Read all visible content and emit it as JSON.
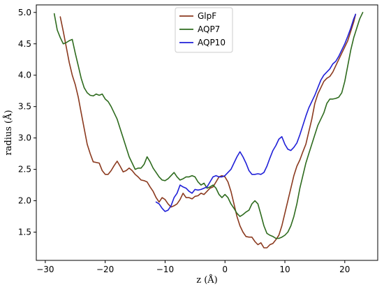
{
  "chart_data": {
    "type": "line",
    "title": "",
    "xlabel": "z (Å)",
    "ylabel": "radius (Å)",
    "xlim": [
      -31.5,
      25.5
    ],
    "ylim": [
      1.05,
      5.12
    ],
    "x_ticks": [
      -30,
      -20,
      -10,
      0,
      10,
      20
    ],
    "y_ticks": [
      1.5,
      2.0,
      2.5,
      3.0,
      3.5,
      4.0,
      4.5,
      5.0
    ],
    "x_tick_labels": [
      "−30",
      "−20",
      "−10",
      "0",
      "10",
      "20"
    ],
    "y_tick_labels": [
      "1.5",
      "2.0",
      "2.5",
      "3.0",
      "3.5",
      "4.0",
      "4.5",
      "5.0"
    ],
    "grid": false,
    "legend_position": "top-center",
    "series": [
      {
        "name": "GlpF",
        "color": "#8b3a1f",
        "points": [
          [
            -27.5,
            4.93
          ],
          [
            -27.0,
            4.7
          ],
          [
            -26.5,
            4.45
          ],
          [
            -26.0,
            4.2
          ],
          [
            -25.5,
            4.0
          ],
          [
            -25.0,
            3.85
          ],
          [
            -24.5,
            3.65
          ],
          [
            -24.0,
            3.4
          ],
          [
            -23.5,
            3.15
          ],
          [
            -23.0,
            2.9
          ],
          [
            -22.5,
            2.75
          ],
          [
            -22.0,
            2.62
          ],
          [
            -21.0,
            2.6
          ],
          [
            -20.5,
            2.48
          ],
          [
            -20.0,
            2.42
          ],
          [
            -19.5,
            2.42
          ],
          [
            -19.0,
            2.48
          ],
          [
            -18.5,
            2.56
          ],
          [
            -18.0,
            2.63
          ],
          [
            -17.5,
            2.55
          ],
          [
            -17.0,
            2.46
          ],
          [
            -16.5,
            2.48
          ],
          [
            -16.0,
            2.52
          ],
          [
            -15.5,
            2.48
          ],
          [
            -15.0,
            2.42
          ],
          [
            -14.5,
            2.38
          ],
          [
            -14.0,
            2.33
          ],
          [
            -13.5,
            2.32
          ],
          [
            -13.0,
            2.3
          ],
          [
            -12.5,
            2.22
          ],
          [
            -12.0,
            2.15
          ],
          [
            -11.5,
            2.05
          ],
          [
            -11.0,
            1.98
          ],
          [
            -10.5,
            2.05
          ],
          [
            -10.0,
            2.02
          ],
          [
            -9.5,
            1.95
          ],
          [
            -9.0,
            1.9
          ],
          [
            -8.5,
            1.92
          ],
          [
            -8.0,
            1.95
          ],
          [
            -7.5,
            2.02
          ],
          [
            -7.0,
            2.12
          ],
          [
            -6.5,
            2.05
          ],
          [
            -6.0,
            2.05
          ],
          [
            -5.5,
            2.03
          ],
          [
            -5.0,
            2.07
          ],
          [
            -4.5,
            2.08
          ],
          [
            -4.0,
            2.12
          ],
          [
            -3.5,
            2.1
          ],
          [
            -3.0,
            2.15
          ],
          [
            -2.5,
            2.2
          ],
          [
            -2.0,
            2.22
          ],
          [
            -1.5,
            2.3
          ],
          [
            -1.0,
            2.38
          ],
          [
            -0.5,
            2.4
          ],
          [
            0.0,
            2.38
          ],
          [
            0.5,
            2.3
          ],
          [
            1.0,
            2.15
          ],
          [
            1.5,
            1.95
          ],
          [
            2.0,
            1.75
          ],
          [
            2.5,
            1.6
          ],
          [
            3.0,
            1.5
          ],
          [
            3.5,
            1.43
          ],
          [
            4.0,
            1.42
          ],
          [
            4.5,
            1.42
          ],
          [
            5.0,
            1.35
          ],
          [
            5.5,
            1.3
          ],
          [
            6.0,
            1.33
          ],
          [
            6.5,
            1.25
          ],
          [
            7.0,
            1.25
          ],
          [
            7.5,
            1.3
          ],
          [
            8.0,
            1.32
          ],
          [
            8.5,
            1.38
          ],
          [
            9.0,
            1.45
          ],
          [
            9.5,
            1.6
          ],
          [
            10.0,
            1.8
          ],
          [
            10.5,
            2.0
          ],
          [
            11.0,
            2.2
          ],
          [
            11.5,
            2.4
          ],
          [
            12.0,
            2.55
          ],
          [
            12.5,
            2.65
          ],
          [
            13.0,
            2.78
          ],
          [
            13.5,
            2.9
          ],
          [
            14.0,
            3.1
          ],
          [
            14.5,
            3.3
          ],
          [
            15.0,
            3.55
          ],
          [
            15.5,
            3.7
          ],
          [
            16.0,
            3.8
          ],
          [
            16.5,
            3.9
          ],
          [
            17.0,
            3.95
          ],
          [
            17.5,
            3.98
          ],
          [
            18.0,
            4.05
          ],
          [
            18.5,
            4.15
          ],
          [
            19.0,
            4.25
          ],
          [
            19.5,
            4.35
          ],
          [
            20.0,
            4.45
          ],
          [
            20.5,
            4.55
          ],
          [
            21.0,
            4.7
          ],
          [
            21.5,
            4.85
          ],
          [
            21.8,
            4.97
          ]
        ]
      },
      {
        "name": "AQP7",
        "color": "#2e6b1e",
        "points": [
          [
            -28.5,
            4.98
          ],
          [
            -28.0,
            4.72
          ],
          [
            -27.5,
            4.6
          ],
          [
            -27.0,
            4.5
          ],
          [
            -26.5,
            4.52
          ],
          [
            -26.0,
            4.55
          ],
          [
            -25.5,
            4.57
          ],
          [
            -25.0,
            4.35
          ],
          [
            -24.5,
            4.15
          ],
          [
            -24.0,
            3.95
          ],
          [
            -23.5,
            3.8
          ],
          [
            -23.0,
            3.72
          ],
          [
            -22.5,
            3.68
          ],
          [
            -22.0,
            3.67
          ],
          [
            -21.5,
            3.7
          ],
          [
            -21.0,
            3.68
          ],
          [
            -20.5,
            3.7
          ],
          [
            -20.0,
            3.62
          ],
          [
            -19.5,
            3.58
          ],
          [
            -19.0,
            3.5
          ],
          [
            -18.5,
            3.4
          ],
          [
            -18.0,
            3.3
          ],
          [
            -17.5,
            3.15
          ],
          [
            -17.0,
            3.0
          ],
          [
            -16.5,
            2.85
          ],
          [
            -16.0,
            2.7
          ],
          [
            -15.5,
            2.6
          ],
          [
            -15.0,
            2.5
          ],
          [
            -14.5,
            2.52
          ],
          [
            -14.0,
            2.52
          ],
          [
            -13.5,
            2.58
          ],
          [
            -13.0,
            2.7
          ],
          [
            -12.5,
            2.62
          ],
          [
            -12.0,
            2.52
          ],
          [
            -11.5,
            2.45
          ],
          [
            -11.0,
            2.38
          ],
          [
            -10.5,
            2.33
          ],
          [
            -10.0,
            2.32
          ],
          [
            -9.5,
            2.35
          ],
          [
            -9.0,
            2.4
          ],
          [
            -8.5,
            2.45
          ],
          [
            -8.0,
            2.38
          ],
          [
            -7.5,
            2.33
          ],
          [
            -7.0,
            2.35
          ],
          [
            -6.5,
            2.38
          ],
          [
            -6.0,
            2.38
          ],
          [
            -5.5,
            2.4
          ],
          [
            -5.0,
            2.38
          ],
          [
            -4.5,
            2.3
          ],
          [
            -4.0,
            2.25
          ],
          [
            -3.5,
            2.28
          ],
          [
            -3.0,
            2.2
          ],
          [
            -2.5,
            2.22
          ],
          [
            -2.0,
            2.25
          ],
          [
            -1.5,
            2.2
          ],
          [
            -1.0,
            2.1
          ],
          [
            -0.5,
            2.05
          ],
          [
            0.0,
            2.1
          ],
          [
            0.5,
            2.05
          ],
          [
            1.0,
            1.95
          ],
          [
            1.5,
            1.88
          ],
          [
            2.0,
            1.8
          ],
          [
            2.5,
            1.75
          ],
          [
            3.0,
            1.78
          ],
          [
            3.5,
            1.82
          ],
          [
            4.0,
            1.85
          ],
          [
            4.5,
            1.95
          ],
          [
            5.0,
            2.0
          ],
          [
            5.5,
            1.95
          ],
          [
            6.0,
            1.78
          ],
          [
            6.5,
            1.6
          ],
          [
            7.0,
            1.48
          ],
          [
            7.5,
            1.45
          ],
          [
            8.0,
            1.43
          ],
          [
            8.5,
            1.4
          ],
          [
            9.0,
            1.4
          ],
          [
            9.5,
            1.42
          ],
          [
            10.0,
            1.45
          ],
          [
            10.5,
            1.5
          ],
          [
            11.0,
            1.6
          ],
          [
            11.5,
            1.75
          ],
          [
            12.0,
            1.95
          ],
          [
            12.5,
            2.2
          ],
          [
            13.0,
            2.4
          ],
          [
            13.5,
            2.6
          ],
          [
            14.0,
            2.75
          ],
          [
            14.5,
            2.9
          ],
          [
            15.0,
            3.05
          ],
          [
            15.5,
            3.2
          ],
          [
            16.0,
            3.3
          ],
          [
            16.5,
            3.4
          ],
          [
            17.0,
            3.55
          ],
          [
            17.5,
            3.62
          ],
          [
            18.0,
            3.62
          ],
          [
            18.5,
            3.63
          ],
          [
            19.0,
            3.65
          ],
          [
            19.5,
            3.72
          ],
          [
            20.0,
            3.9
          ],
          [
            20.5,
            4.15
          ],
          [
            21.0,
            4.4
          ],
          [
            21.5,
            4.6
          ],
          [
            22.0,
            4.75
          ],
          [
            22.5,
            4.9
          ],
          [
            23.0,
            5.0
          ]
        ]
      },
      {
        "name": "AQP10",
        "color": "#2020d8",
        "points": [
          [
            -11.5,
            1.98
          ],
          [
            -11.0,
            1.95
          ],
          [
            -10.5,
            1.88
          ],
          [
            -10.0,
            1.83
          ],
          [
            -9.5,
            1.85
          ],
          [
            -9.0,
            1.92
          ],
          [
            -8.5,
            2.05
          ],
          [
            -8.0,
            2.12
          ],
          [
            -7.5,
            2.25
          ],
          [
            -7.0,
            2.22
          ],
          [
            -6.5,
            2.2
          ],
          [
            -6.0,
            2.15
          ],
          [
            -5.5,
            2.12
          ],
          [
            -5.0,
            2.18
          ],
          [
            -4.5,
            2.17
          ],
          [
            -4.0,
            2.18
          ],
          [
            -3.5,
            2.2
          ],
          [
            -3.0,
            2.22
          ],
          [
            -2.5,
            2.3
          ],
          [
            -2.0,
            2.38
          ],
          [
            -1.5,
            2.4
          ],
          [
            -1.0,
            2.38
          ],
          [
            -0.5,
            2.38
          ],
          [
            0.0,
            2.4
          ],
          [
            0.5,
            2.45
          ],
          [
            1.0,
            2.5
          ],
          [
            1.5,
            2.6
          ],
          [
            2.0,
            2.7
          ],
          [
            2.5,
            2.78
          ],
          [
            3.0,
            2.7
          ],
          [
            3.5,
            2.6
          ],
          [
            4.0,
            2.48
          ],
          [
            4.5,
            2.42
          ],
          [
            5.0,
            2.42
          ],
          [
            5.5,
            2.43
          ],
          [
            6.0,
            2.42
          ],
          [
            6.5,
            2.45
          ],
          [
            7.0,
            2.55
          ],
          [
            7.5,
            2.68
          ],
          [
            8.0,
            2.8
          ],
          [
            8.5,
            2.88
          ],
          [
            9.0,
            2.98
          ],
          [
            9.5,
            3.02
          ],
          [
            10.0,
            2.9
          ],
          [
            10.5,
            2.82
          ],
          [
            11.0,
            2.8
          ],
          [
            11.5,
            2.85
          ],
          [
            12.0,
            2.92
          ],
          [
            12.5,
            3.05
          ],
          [
            13.0,
            3.2
          ],
          [
            13.5,
            3.35
          ],
          [
            14.0,
            3.48
          ],
          [
            14.5,
            3.58
          ],
          [
            15.0,
            3.68
          ],
          [
            15.5,
            3.8
          ],
          [
            16.0,
            3.92
          ],
          [
            16.5,
            4.0
          ],
          [
            17.0,
            4.05
          ],
          [
            17.5,
            4.1
          ],
          [
            18.0,
            4.18
          ],
          [
            18.5,
            4.22
          ],
          [
            19.0,
            4.3
          ],
          [
            19.5,
            4.4
          ],
          [
            20.0,
            4.5
          ],
          [
            20.5,
            4.62
          ],
          [
            21.0,
            4.75
          ],
          [
            21.5,
            4.9
          ],
          [
            21.8,
            4.97
          ]
        ]
      }
    ]
  }
}
